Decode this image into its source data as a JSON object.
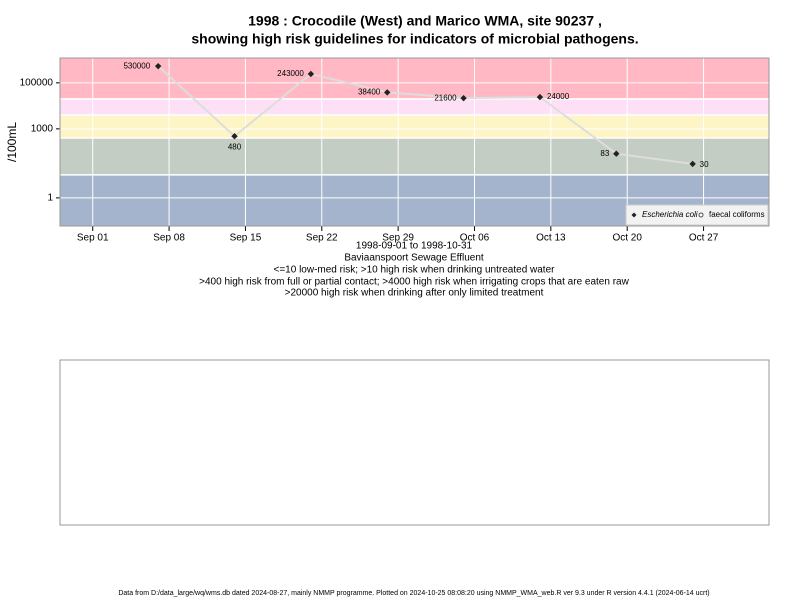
{
  "chart_data": {
    "type": "line",
    "title_lines": [
      "1998 : Crocodile (West) and Marico WMA, site 90237 ,",
      "showing high risk guidelines for indicators of microbial pathogens."
    ],
    "y_label": "/100mL",
    "subtitle_lines": [
      "1998-09-01 to 1998-10-31",
      "Baviaanspoort Sewage Effluent",
      "<=10 low-med risk; >10 high risk when drinking untreated water",
      ">400 high risk from full or partial contact; >4000 high risk when irrigating crops that are eaten raw",
      ">20000 high risk when drinking after only limited treatment"
    ],
    "x": [
      "1998-09-07",
      "1998-09-14",
      "1998-09-21",
      "1998-09-28",
      "1998-10-05",
      "1998-10-12",
      "1998-10-19",
      "1998-10-26"
    ],
    "series": [
      {
        "name": "Escherichia coli",
        "color": "#dddddd",
        "marker_color": "#222222",
        "values": [
          530000,
          480,
          243000,
          38400,
          21600,
          24000,
          83,
          30
        ]
      },
      {
        "name": "faecal coliforms",
        "color": "#dddddd",
        "marker_color": "#222222",
        "values": [
          null,
          null,
          null,
          null,
          null,
          null,
          null,
          null
        ]
      }
    ],
    "xlim": [
      "1998-08-29",
      "1998-11-02"
    ],
    "xticks": [
      {
        "value": "1998-09-01",
        "label": "Sep 01"
      },
      {
        "value": "1998-09-08",
        "label": "Sep 08"
      },
      {
        "value": "1998-09-15",
        "label": "Sep 15"
      },
      {
        "value": "1998-09-22",
        "label": "Sep 22"
      },
      {
        "value": "1998-09-29",
        "label": "Sep 29"
      },
      {
        "value": "1998-10-06",
        "label": "Oct 06"
      },
      {
        "value": "1998-10-13",
        "label": "Oct 13"
      },
      {
        "value": "1998-10-20",
        "label": "Oct 20"
      },
      {
        "value": "1998-10-27",
        "label": "Oct 27"
      }
    ],
    "ylim": [
      0.06,
      1200000
    ],
    "yticks": [
      1,
      1000,
      100000
    ],
    "log_y": true,
    "grid": true,
    "legend": "bottom-right",
    "risk_thresholds": [
      10,
      400,
      4000,
      20000
    ],
    "risk_colors": [
      "#a3b4cc",
      "#c4cdc3",
      "#fdf5c6",
      "#fde0f6",
      "#ffb8c4"
    ],
    "footer": "Data from D:/data_large/wq/wms.db dated 2024-08-27, mainly NMMP programme. Plotted on 2024-10-25 08:08:20 using NMMP_WMA_web.R ver 9.3 under R version 4.4.1 (2024-06-14 ucrt)"
  }
}
